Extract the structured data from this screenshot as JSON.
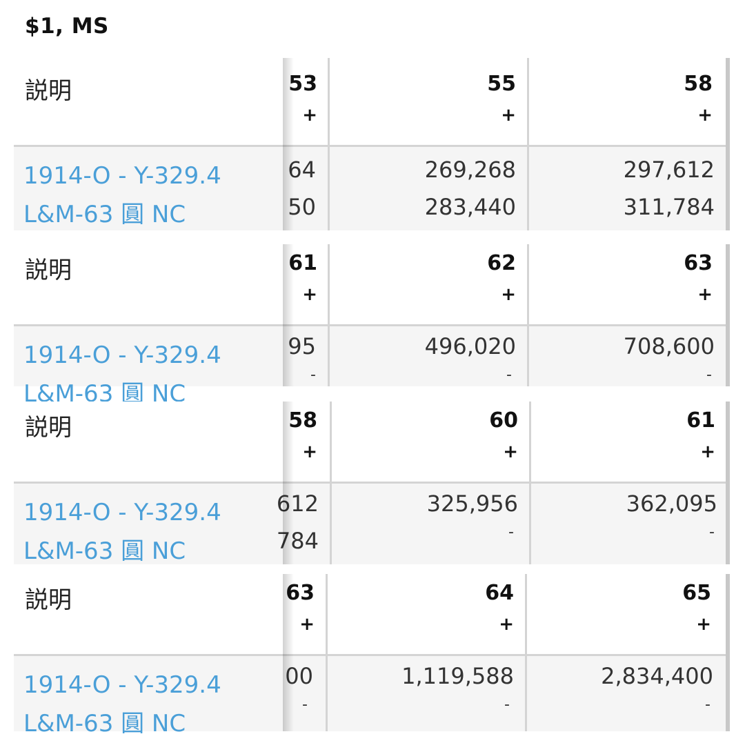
{
  "page_title": "$1, MS",
  "panels": [
    {
      "desc_header": "説明",
      "coin_line1": "1914-O - Y-329.4",
      "coin_line2": "L&M-63 圓 NC",
      "partial_grade": "53",
      "partial_plus": "+",
      "partial_val1": "64",
      "partial_val2": "50",
      "grades": [
        {
          "grade": "55",
          "plus": "+",
          "val1": "269,268",
          "val2": "283,440"
        },
        {
          "grade": "58",
          "plus": "+",
          "val1": "297,612",
          "val2": "311,784"
        }
      ]
    },
    {
      "desc_header": "説明",
      "coin_line1": "1914-O - Y-329.4",
      "coin_line2": "L&M-63 圓 NC",
      "partial_grade": "61",
      "partial_plus": "+",
      "partial_val1": "95",
      "partial_val2": "-",
      "grades": [
        {
          "grade": "62",
          "plus": "+",
          "val1": "496,020",
          "val2": "-"
        },
        {
          "grade": "63",
          "plus": "+",
          "val1": "708,600",
          "val2": "-"
        }
      ]
    },
    {
      "desc_header": "説明",
      "coin_line1": "1914-O - Y-329.4",
      "coin_line2": "L&M-63 圓 NC",
      "partial_grade": "58",
      "partial_plus": "+",
      "partial_val1": "612",
      "partial_val2": "784",
      "grades": [
        {
          "grade": "60",
          "plus": "+",
          "val1": "325,956",
          "val2": "-"
        },
        {
          "grade": "61",
          "plus": "+",
          "val1": "362,095",
          "val2": "-"
        }
      ]
    },
    {
      "desc_header": "説明",
      "coin_line1": "1914-O - Y-329.4",
      "coin_line2": "L&M-63 圓 NC",
      "partial_grade": "63",
      "partial_plus": "+",
      "partial_val1": "00",
      "partial_val2": "-",
      "grades": [
        {
          "grade": "64",
          "plus": "+",
          "val1": "1,119,588",
          "val2": "-"
        },
        {
          "grade": "65",
          "plus": "+",
          "val1": "2,834,400",
          "val2": "-"
        }
      ]
    }
  ]
}
